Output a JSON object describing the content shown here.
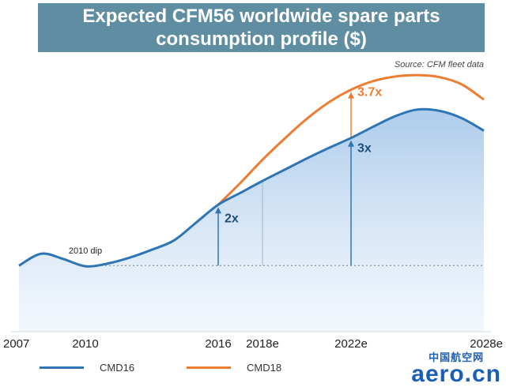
{
  "chart_data": {
    "type": "area",
    "title": "Expected CFM56 worldwide spare parts consumption profile ($)",
    "title_lines": [
      "Expected CFM56 worldwide spare parts",
      "consumption profile ($)"
    ],
    "source": "Source: CFM fleet data",
    "x_ticks": [
      {
        "x": 2007,
        "label": "2007"
      },
      {
        "x": 2010,
        "label": "2010"
      },
      {
        "x": 2016,
        "label": "2016"
      },
      {
        "x": 2018,
        "label": "2018e"
      },
      {
        "x": 2022,
        "label": "2022e"
      },
      {
        "x": 2028,
        "label": "2028e"
      }
    ],
    "xlim": [
      2007,
      2028
    ],
    "ylim": [
      0,
      4.3
    ],
    "baseline_y": 1.0,
    "series": [
      {
        "name": "CMD16",
        "color": "#2e75b6",
        "x": [
          2007,
          2008,
          2009,
          2010,
          2011,
          2012,
          2013,
          2014,
          2015,
          2016,
          2017,
          2018,
          2019,
          2020,
          2021,
          2022,
          2023,
          2024,
          2025,
          2026,
          2027,
          2028
        ],
        "values": [
          1.0,
          1.18,
          1.1,
          0.99,
          1.03,
          1.12,
          1.24,
          1.38,
          1.65,
          1.92,
          2.1,
          2.28,
          2.45,
          2.62,
          2.78,
          2.93,
          3.1,
          3.26,
          3.36,
          3.34,
          3.23,
          3.04
        ]
      },
      {
        "name": "CMD18",
        "color": "#ed7d31",
        "x": [
          2016,
          2017,
          2018,
          2019,
          2020,
          2021,
          2022,
          2023,
          2024,
          2025,
          2026,
          2027,
          2028
        ],
        "values": [
          1.92,
          2.25,
          2.6,
          2.92,
          3.22,
          3.47,
          3.66,
          3.79,
          3.86,
          3.88,
          3.85,
          3.74,
          3.51
        ]
      }
    ],
    "annotations": [
      {
        "x": 2016,
        "text": "2x",
        "series": "CMD16"
      },
      {
        "x": 2022,
        "text": "3x",
        "series": "CMD16"
      },
      {
        "x": 2022,
        "text": "3.7x",
        "series": "CMD18"
      },
      {
        "x": 2010,
        "text": "2010 dip"
      }
    ],
    "legend_placement": "bottom",
    "grid": false
  },
  "watermark": {
    "cn": "中国航空网",
    "en": "aero.cn"
  }
}
